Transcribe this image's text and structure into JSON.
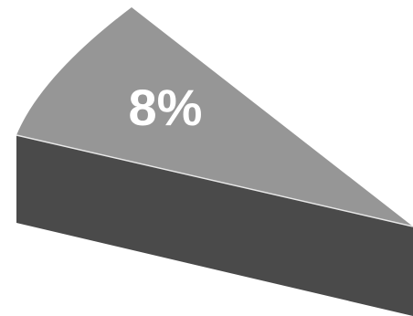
{
  "chart_data": {
    "type": "pie",
    "title": "",
    "slices": [
      {
        "value": 8,
        "label": "8%"
      }
    ],
    "colors": {
      "top": "#969696",
      "side": "#4a4a4a",
      "edge_highlight": "#e8e8e8",
      "label": "#ffffff"
    }
  }
}
